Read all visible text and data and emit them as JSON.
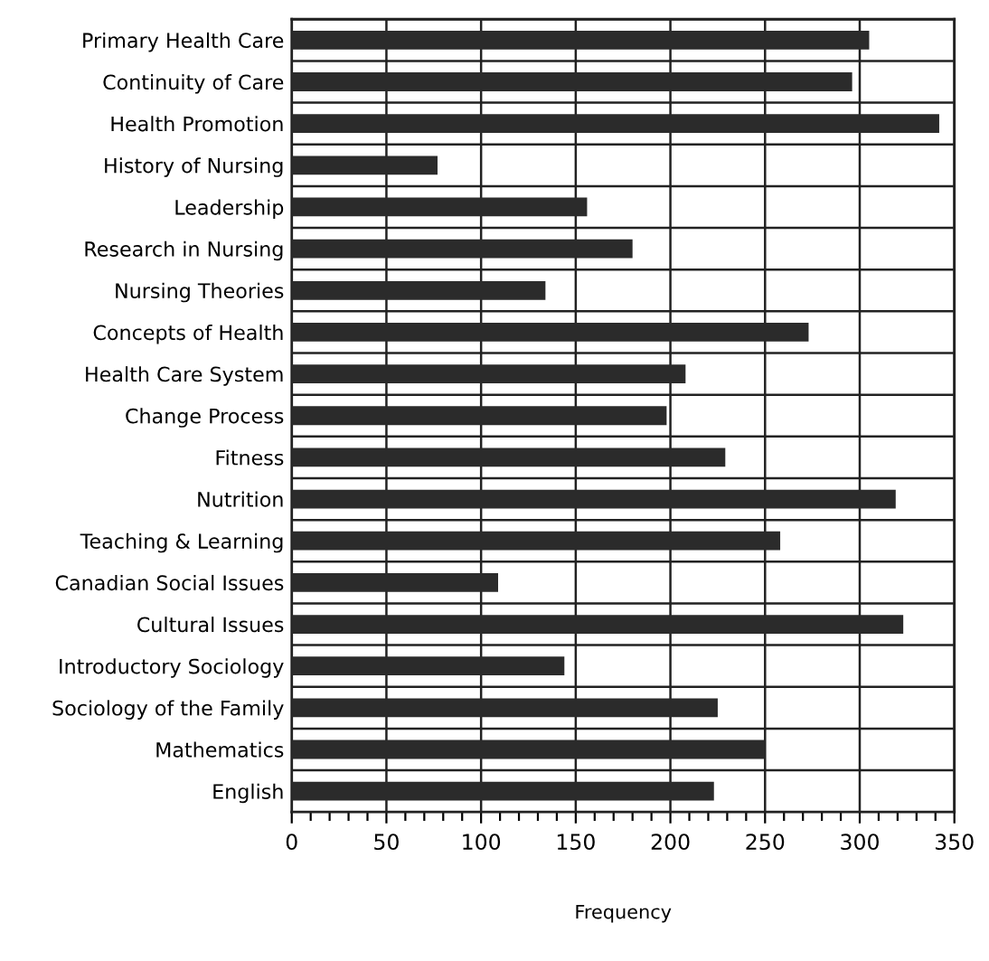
{
  "chart_data": {
    "type": "bar",
    "orientation": "horizontal",
    "xlabel": "Frequency",
    "categories": [
      "Primary Health Care",
      "Continuity of Care",
      "Health Promotion",
      "History of Nursing",
      "Leadership",
      "Research in Nursing",
      "Nursing Theories",
      "Concepts of Health",
      "Health Care System",
      "Change Process",
      "Fitness",
      "Nutrition",
      "Teaching & Learning",
      "Canadian Social Issues",
      "Cultural Issues",
      "Introductory Sociology",
      "Sociology of the Family",
      "Mathematics",
      "English"
    ],
    "values": [
      305,
      296,
      342,
      77,
      156,
      180,
      134,
      273,
      208,
      198,
      229,
      319,
      258,
      109,
      323,
      144,
      225,
      250,
      223
    ],
    "color": "#2b2b2b",
    "xlim": [
      0,
      350
    ],
    "xticks": [
      0,
      {
        "value": 10,
        "label": null
      },
      {
        "value": 20,
        "label": null
      },
      {
        "value": 30,
        "label": null
      },
      {
        "value": 40,
        "label": null
      },
      50,
      {
        "value": 60,
        "label": null
      },
      {
        "value": 70,
        "label": null
      },
      {
        "value": 80,
        "label": null
      },
      {
        "value": 90,
        "label": null
      },
      100,
      {
        "value": 110,
        "label": null
      },
      {
        "value": 120,
        "label": null
      },
      {
        "value": 130,
        "label": null
      },
      {
        "value": 140,
        "label": null
      },
      150,
      {
        "value": 160,
        "label": null
      },
      {
        "value": 170,
        "label": null
      },
      {
        "value": 180,
        "label": null
      },
      {
        "value": 190,
        "label": null
      },
      200,
      {
        "value": 210,
        "label": null
      },
      {
        "value": 220,
        "label": null
      },
      {
        "value": 230,
        "label": null
      },
      {
        "value": 240,
        "label": null
      },
      250,
      {
        "value": 260,
        "label": null
      },
      {
        "value": 270,
        "label": null
      },
      {
        "value": 280,
        "label": null
      },
      {
        "value": 290,
        "label": null
      },
      300,
      {
        "value": 310,
        "label": null
      },
      {
        "value": 320,
        "label": null
      },
      {
        "value": 330,
        "label": null
      },
      {
        "value": 340,
        "label": null
      },
      350
    ],
    "grid": true
  }
}
